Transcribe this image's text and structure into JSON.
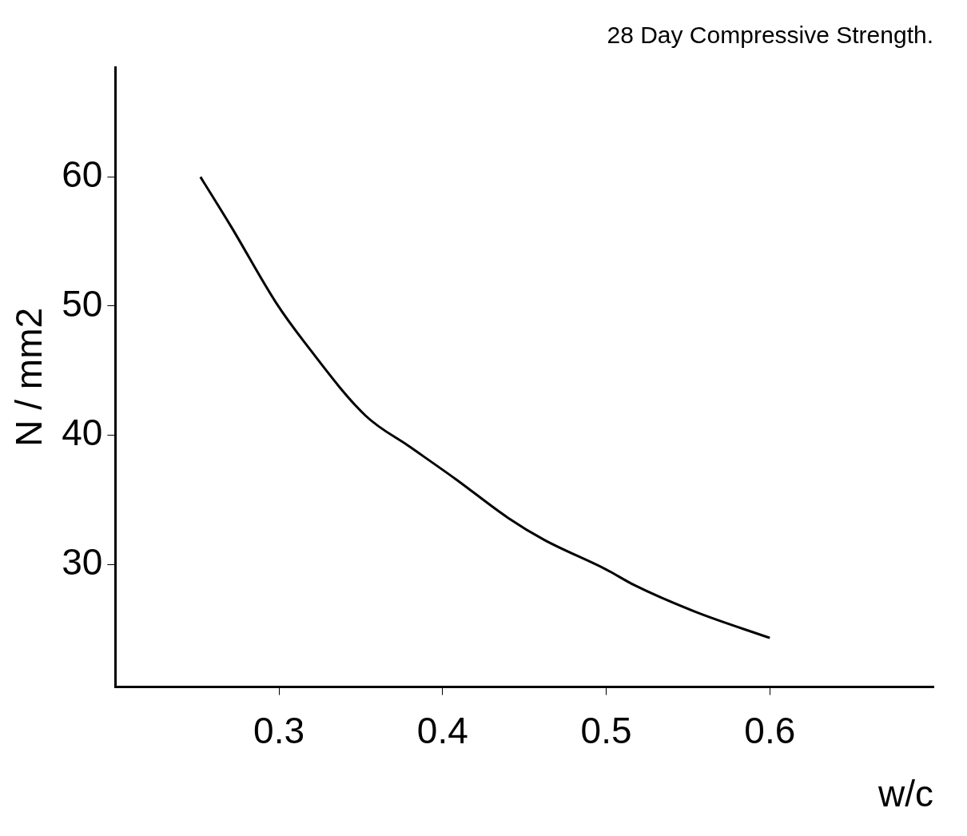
{
  "chart_data": {
    "type": "line",
    "title": "28 Day Compressive Strength.",
    "xlabel": "w/c",
    "ylabel": "N / mm2",
    "x": [
      0.252,
      0.271,
      0.298,
      0.315,
      0.353,
      0.38,
      0.408,
      0.44,
      0.462,
      0.5,
      0.517,
      0.555,
      0.6
    ],
    "series": [
      {
        "color": "#000000",
        "values": [
          60,
          56.1,
          50.3,
          47.3,
          41.5,
          39.1,
          36.6,
          33.6,
          31.9,
          29.6,
          28.4,
          26.3,
          24.3
        ]
      }
    ],
    "xlim": [
      0.2,
      0.7
    ],
    "xticks": [
      0.3,
      0.4,
      0.5,
      0.6
    ],
    "ylim": [
      20.5,
      68.5
    ],
    "yticks": [
      30,
      40,
      50,
      60
    ],
    "grid": false,
    "legend": false,
    "marker": "none",
    "line_style": "solid"
  }
}
